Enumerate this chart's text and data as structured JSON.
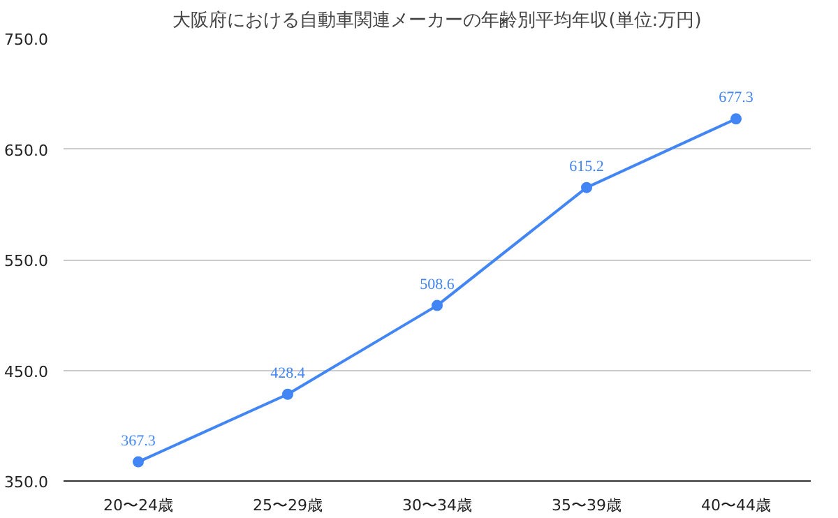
{
  "chart_data": {
    "type": "line",
    "title": "大阪府における自動車関連メーカーの年齢別平均年収(単位:万円)",
    "categories": [
      "20〜24歳",
      "25〜29歳",
      "30〜34歳",
      "35〜39歳",
      "40〜44歳"
    ],
    "series": [
      {
        "color": "#4285f4",
        "values": [
          367.3,
          428.4,
          508.6,
          615.2,
          677.3
        ]
      }
    ],
    "ylim": [
      350,
      750
    ],
    "yticks": [
      {
        "value": 350,
        "label": "350.0"
      },
      {
        "value": 450,
        "label": "450.0"
      },
      {
        "value": 550,
        "label": "550.0"
      },
      {
        "value": 650,
        "label": "650.0"
      },
      {
        "value": 750,
        "label": "750.0"
      }
    ],
    "grid": "y",
    "marker": "circle",
    "line_style": "solid",
    "data_labels": true
  }
}
